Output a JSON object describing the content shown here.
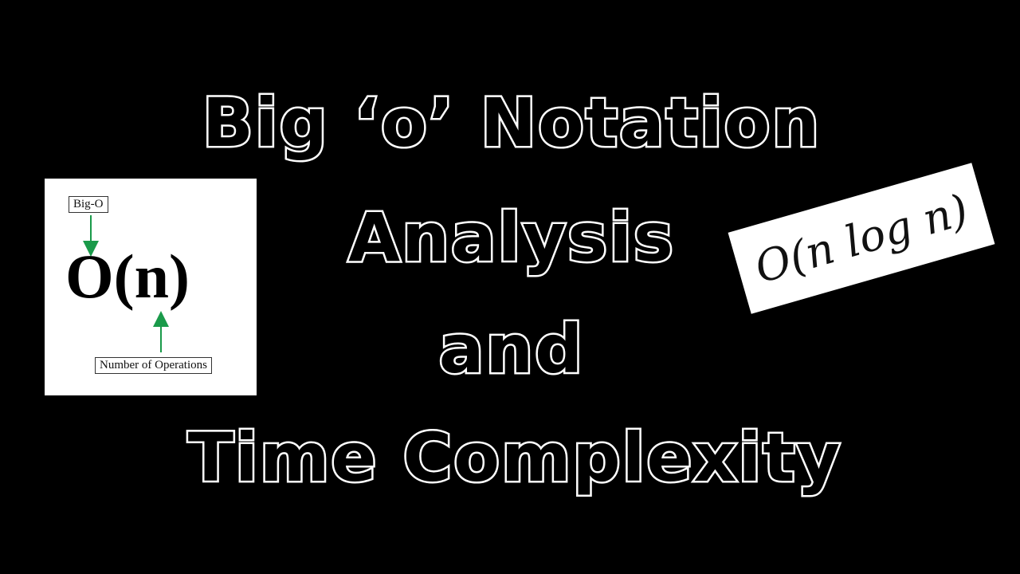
{
  "title": {
    "line1": "Big ‘o’ Notation",
    "line2": "Analysis",
    "line3": "and",
    "line4": "Time Complexity"
  },
  "diagram": {
    "top_label": "Big-O",
    "notation": "O(n)",
    "bottom_label": "Number of Operations",
    "arrow_color": "#1a9a4a"
  },
  "card": {
    "formula": "O(n log n)"
  },
  "colors": {
    "background": "#000000",
    "text_outline": "#ffffff",
    "text_fill": "#000000"
  }
}
